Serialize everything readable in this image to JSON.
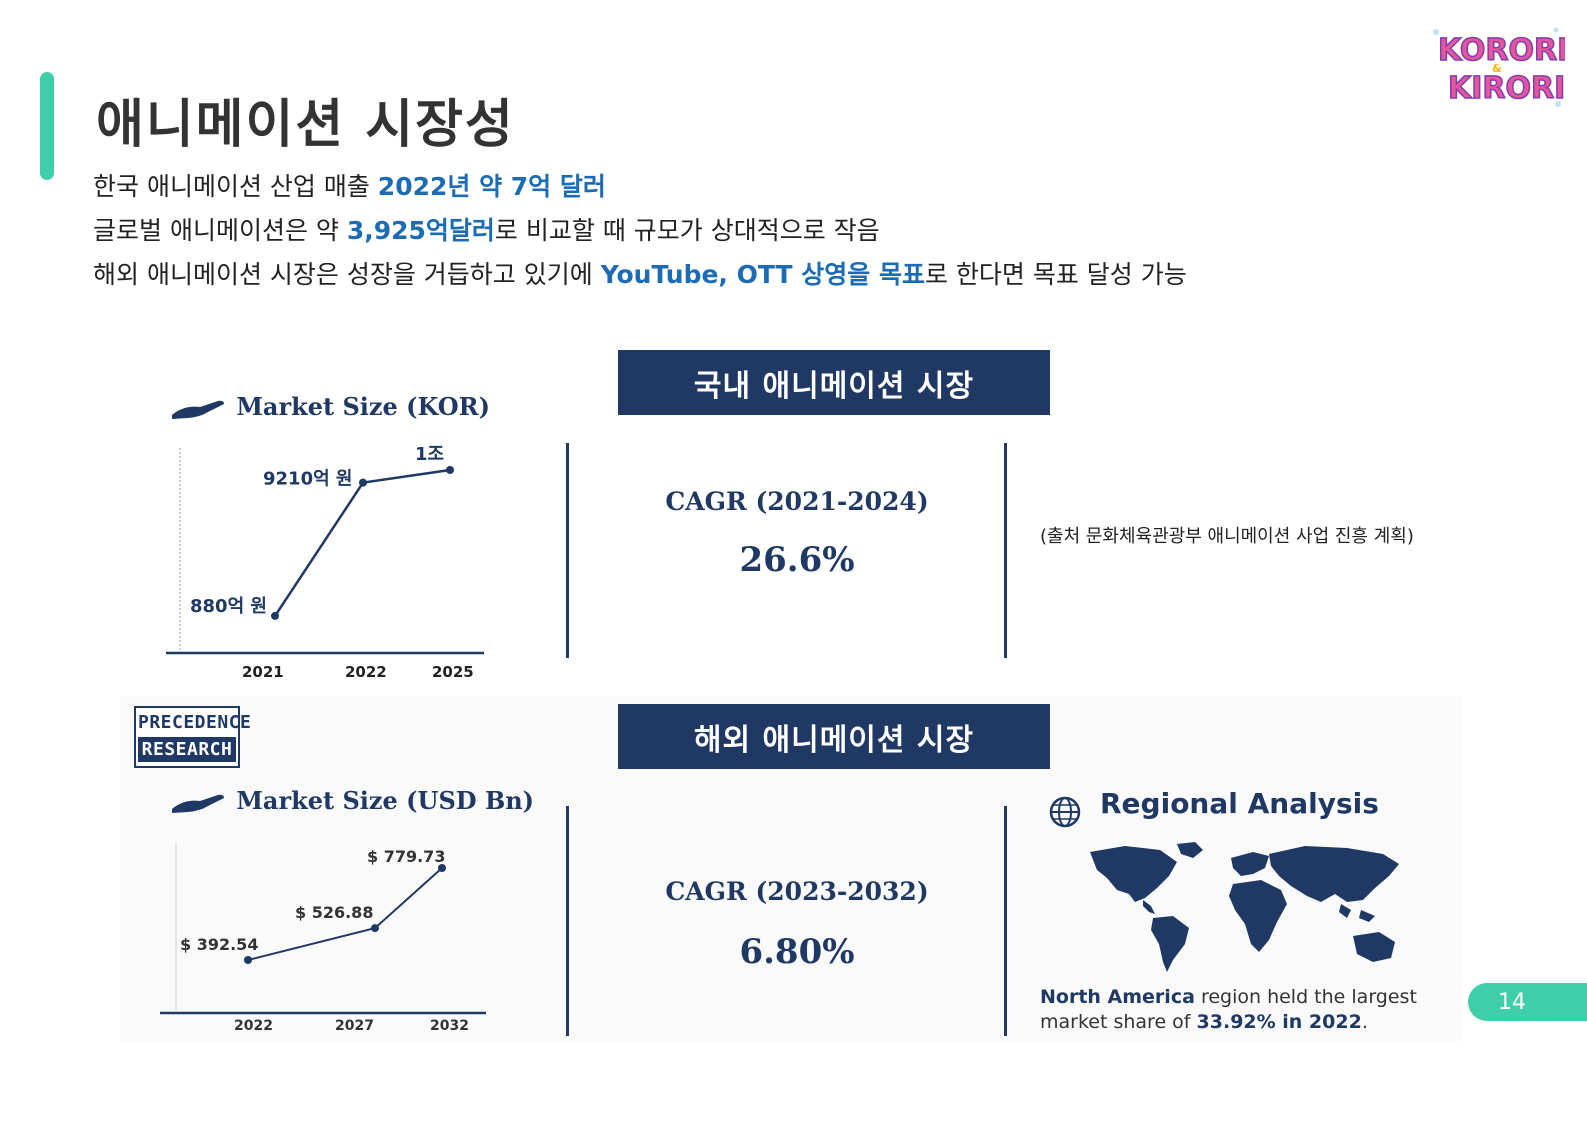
{
  "header": {
    "title": "애니메이션 시장성",
    "lines": [
      {
        "pre": "한국 애니메이션 산업 매출 ",
        "hl": "2022년 약 7억 달러",
        "post": ""
      },
      {
        "pre": "글로벌 애니메이션은 약 ",
        "hl": "3,925억달러",
        "post": "로 비교할 때 규모가 상대적으로 작음"
      },
      {
        "pre": "해외 애니메이션 시장은 성장을 거듭하고 있기에 ",
        "hl": "YouTube, OTT 상영을 목표",
        "post": "로 한다면 목표 달성 가능"
      }
    ]
  },
  "logo": {
    "line1": "KORORI",
    "amp": "&",
    "line2": "KIRORI"
  },
  "domestic": {
    "banner": "국내 애니메이션 시장",
    "market_title": "Market Size (KOR)",
    "cagr_label": "CAGR (2021-2024)",
    "cagr_value": "26.6%",
    "source": "(출처 문화체육관광부 애니메이션 사업 진흥 계획)"
  },
  "overseas": {
    "banner": "해외  애니메이션 시장",
    "market_title": "Market Size (USD Bn)",
    "cagr_label": "CAGR (2023-2032)",
    "cagr_value": "6.80%",
    "pr_logo": {
      "line1": "PRECEDENCE",
      "line2": "RESEARCH"
    },
    "regional_title": "Regional Analysis",
    "region_text_pre": "North America",
    "region_text_mid": " region held the largest",
    "region_text_line2_pre": "market share of ",
    "region_text_line2_val": "33.92% in 2022",
    "region_text_line2_post": "."
  },
  "page_number": "14",
  "chart_data": [
    {
      "type": "line",
      "title": "Market Size (KOR)",
      "categories": [
        "2021",
        "2022",
        "2025"
      ],
      "values": [
        880,
        9210,
        10000
      ],
      "data_labels": [
        "880억 원",
        "9210억 원",
        "1조"
      ],
      "xlabel": "",
      "ylabel": ""
    },
    {
      "type": "line",
      "title": "Market Size (USD Bn)",
      "categories": [
        "2022",
        "2027",
        "2032"
      ],
      "values": [
        392.54,
        526.88,
        779.73
      ],
      "data_labels": [
        "$ 392.54",
        "$ 526.88",
        "$ 779.73"
      ],
      "xlabel": "",
      "ylabel": ""
    }
  ],
  "colors": {
    "accent": "#3ecfa8",
    "navy": "#1f3864",
    "highlight": "#1b6cb4"
  }
}
